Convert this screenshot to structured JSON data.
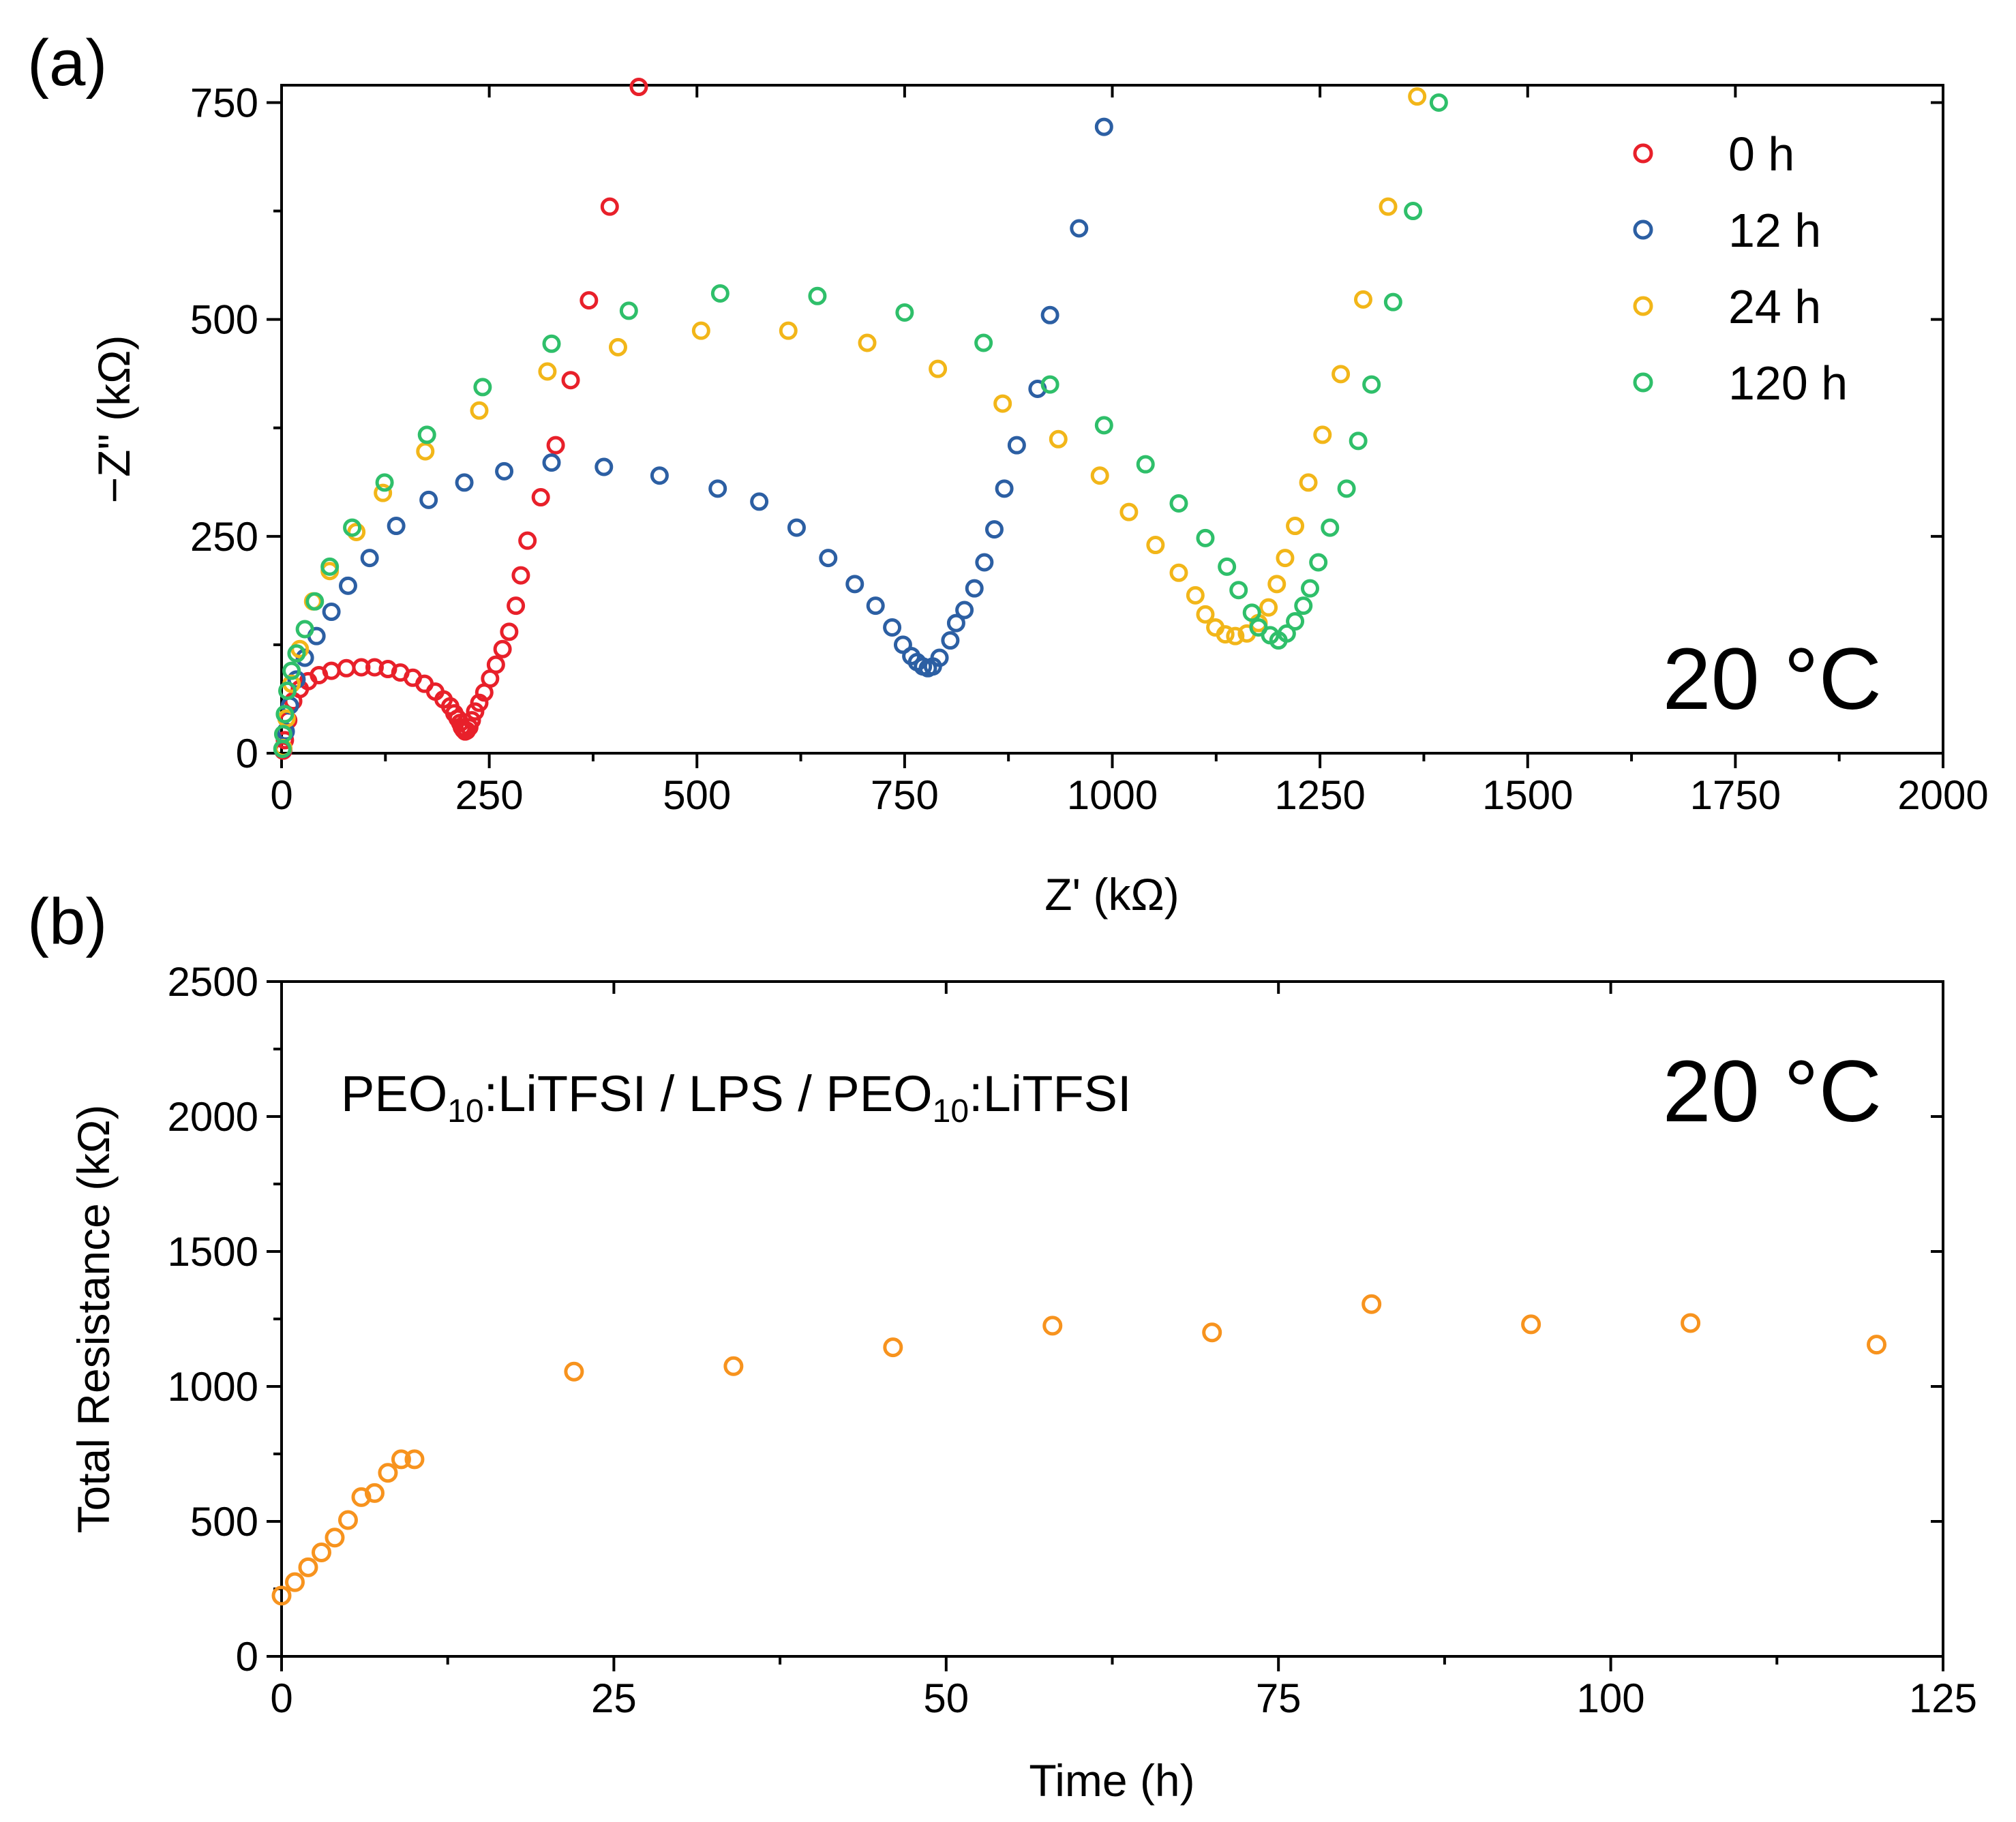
{
  "chart_data": [
    {
      "type": "scatter",
      "panel_label": "(a)",
      "xlabel": "Z' (kΩ)",
      "ylabel": "−Z\" (kΩ)",
      "xlim": [
        0,
        2000
      ],
      "ylim": [
        0,
        770
      ],
      "xticks": [
        0,
        250,
        500,
        750,
        1000,
        1250,
        1500,
        1750,
        2000
      ],
      "yticks": [
        0,
        250,
        500,
        750
      ],
      "annotation": "20 °C",
      "legend_position": "top-right",
      "series": [
        {
          "name": "0 h",
          "color": "#e8202a",
          "points": [
            [
              2,
              3
            ],
            [
              4,
              15
            ],
            [
              8,
              38
            ],
            [
              14,
              60
            ],
            [
              22,
              74
            ],
            [
              32,
              83
            ],
            [
              45,
              90
            ],
            [
              60,
              95
            ],
            [
              78,
              98
            ],
            [
              96,
              99
            ],
            [
              112,
              99
            ],
            [
              128,
              97
            ],
            [
              143,
              93
            ],
            [
              158,
              87
            ],
            [
              172,
              80
            ],
            [
              185,
              71
            ],
            [
              195,
              62
            ],
            [
              203,
              54
            ],
            [
              208,
              46
            ],
            [
              212,
              40
            ],
            [
              215,
              35
            ],
            [
              217,
              30
            ],
            [
              219,
              27
            ],
            [
              221,
              25
            ],
            [
              223,
              26
            ],
            [
              226,
              30
            ],
            [
              229,
              38
            ],
            [
              233,
              48
            ],
            [
              238,
              58
            ],
            [
              244,
              70
            ],
            [
              251,
              86
            ],
            [
              258,
              102
            ],
            [
              266,
              120
            ],
            [
              274,
              140
            ],
            [
              282,
              170
            ],
            [
              288,
              205
            ],
            [
              296,
              245
            ],
            [
              312,
              295
            ],
            [
              330,
              355
            ],
            [
              348,
              430
            ],
            [
              370,
              522
            ],
            [
              395,
              630
            ],
            [
              430,
              768
            ]
          ]
        },
        {
          "name": "12 h",
          "color": "#2c5fa3",
          "points": [
            [
              2,
              5
            ],
            [
              5,
              25
            ],
            [
              10,
              55
            ],
            [
              18,
              85
            ],
            [
              28,
              110
            ],
            [
              42,
              135
            ],
            [
              60,
              163
            ],
            [
              80,
              193
            ],
            [
              106,
              225
            ],
            [
              138,
              262
            ],
            [
              177,
              292
            ],
            [
              220,
              312
            ],
            [
              268,
              325
            ],
            [
              325,
              335
            ],
            [
              388,
              330
            ],
            [
              455,
              320
            ],
            [
              525,
              305
            ],
            [
              575,
              290
            ],
            [
              620,
              260
            ],
            [
              658,
              225
            ],
            [
              690,
              195
            ],
            [
              715,
              170
            ],
            [
              735,
              145
            ],
            [
              748,
              125
            ],
            [
              758,
              112
            ],
            [
              765,
              105
            ],
            [
              772,
              100
            ],
            [
              778,
              98
            ],
            [
              784,
              100
            ],
            [
              792,
              110
            ],
            [
              805,
              130
            ],
            [
              812,
              150
            ],
            [
              822,
              165
            ],
            [
              834,
              190
            ],
            [
              846,
              220
            ],
            [
              858,
              258
            ],
            [
              870,
              305
            ],
            [
              885,
              355
            ],
            [
              910,
              420
            ],
            [
              925,
              505
            ],
            [
              960,
              605
            ],
            [
              990,
              722
            ]
          ]
        },
        {
          "name": "24 h",
          "color": "#f2b619",
          "points": [
            [
              2,
              6
            ],
            [
              6,
              40
            ],
            [
              12,
              80
            ],
            [
              22,
              120
            ],
            [
              38,
              175
            ],
            [
              58,
              210
            ],
            [
              90,
              255
            ],
            [
              122,
              300
            ],
            [
              173,
              348
            ],
            [
              238,
              395
            ],
            [
              320,
              440
            ],
            [
              405,
              468
            ],
            [
              505,
              487
            ],
            [
              610,
              487
            ],
            [
              705,
              473
            ],
            [
              790,
              443
            ],
            [
              868,
              403
            ],
            [
              935,
              362
            ],
            [
              985,
              320
            ],
            [
              1020,
              278
            ],
            [
              1052,
              240
            ],
            [
              1080,
              208
            ],
            [
              1100,
              182
            ],
            [
              1112,
              160
            ],
            [
              1124,
              145
            ],
            [
              1136,
              137
            ],
            [
              1148,
              135
            ],
            [
              1162,
              138
            ],
            [
              1176,
              150
            ],
            [
              1188,
              168
            ],
            [
              1198,
              195
            ],
            [
              1208,
              225
            ],
            [
              1220,
              262
            ],
            [
              1236,
              312
            ],
            [
              1253,
              367
            ],
            [
              1275,
              437
            ],
            [
              1302,
              523
            ],
            [
              1332,
              630
            ],
            [
              1367,
              757
            ]
          ]
        },
        {
          "name": "120 h",
          "color": "#2fbf6a",
          "points": [
            [
              1,
              5
            ],
            [
              2,
              22
            ],
            [
              4,
              45
            ],
            [
              7,
              72
            ],
            [
              12,
              95
            ],
            [
              18,
              115
            ],
            [
              28,
              143
            ],
            [
              40,
              175
            ],
            [
              58,
              215
            ],
            [
              85,
              260
            ],
            [
              124,
              312
            ],
            [
              175,
              367
            ],
            [
              242,
              422
            ],
            [
              325,
              472
            ],
            [
              418,
              510
            ],
            [
              528,
              530
            ],
            [
              645,
              527
            ],
            [
              750,
              508
            ],
            [
              845,
              473
            ],
            [
              925,
              425
            ],
            [
              990,
              378
            ],
            [
              1040,
              333
            ],
            [
              1080,
              288
            ],
            [
              1112,
              248
            ],
            [
              1138,
              215
            ],
            [
              1152,
              188
            ],
            [
              1168,
              162
            ],
            [
              1176,
              145
            ],
            [
              1190,
              136
            ],
            [
              1200,
              130
            ],
            [
              1210,
              138
            ],
            [
              1220,
              152
            ],
            [
              1230,
              170
            ],
            [
              1238,
              190
            ],
            [
              1248,
              220
            ],
            [
              1262,
              260
            ],
            [
              1282,
              305
            ],
            [
              1296,
              360
            ],
            [
              1312,
              425
            ],
            [
              1338,
              520
            ],
            [
              1362,
              625
            ],
            [
              1393,
              750
            ]
          ]
        }
      ]
    },
    {
      "type": "scatter",
      "panel_label": "(b)",
      "xlabel": "Time (h)",
      "ylabel": "Total Resistance (kΩ)",
      "xlim": [
        0,
        125
      ],
      "ylim": [
        0,
        2500
      ],
      "xticks": [
        0,
        25,
        50,
        75,
        100,
        125
      ],
      "yticks": [
        0,
        500,
        1000,
        1500,
        2000,
        2500
      ],
      "annotation": "20 °C",
      "cell_label": {
        "part1": "PEO",
        "sub1": "10",
        "part2": ":LiTFSI / LPS / PEO",
        "sub2": "10",
        "part3": ":LiTFSI"
      },
      "series": [
        {
          "name": "Total Resistance",
          "color": "#f7931e",
          "points": [
            [
              0,
              225
            ],
            [
              1,
              275
            ],
            [
              2,
              330
            ],
            [
              3,
              385
            ],
            [
              4,
              440
            ],
            [
              5,
              505
            ],
            [
              6,
              590
            ],
            [
              7,
              605
            ],
            [
              8,
              680
            ],
            [
              9,
              730
            ],
            [
              10,
              730
            ],
            [
              22,
              1055
            ],
            [
              34,
              1075
            ],
            [
              46,
              1145
            ],
            [
              58,
              1225
            ],
            [
              70,
              1200
            ],
            [
              82,
              1305
            ],
            [
              94,
              1230
            ],
            [
              106,
              1235
            ],
            [
              120,
              1155
            ]
          ]
        }
      ]
    }
  ]
}
